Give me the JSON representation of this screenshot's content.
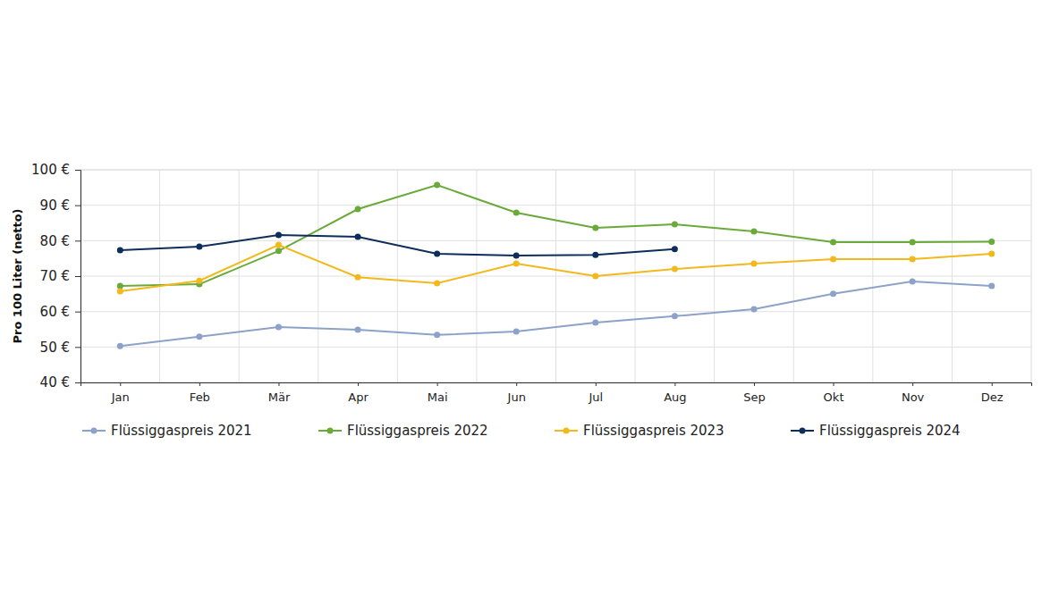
{
  "chart_data": {
    "type": "line",
    "ylabel": "Pro 100 Liter (netto)",
    "categories": [
      "Jan",
      "Feb",
      "Mär",
      "Apr",
      "Mai",
      "Jun",
      "Jul",
      "Aug",
      "Sep",
      "Okt",
      "Nov",
      "Dez"
    ],
    "series": [
      {
        "name": "Flüssiggaspreis 2021",
        "color": "#8da2c9",
        "values": [
          50.3,
          52.9,
          55.6,
          54.9,
          53.4,
          54.4,
          56.9,
          58.7,
          60.7,
          65.0,
          68.5,
          67.2
        ]
      },
      {
        "name": "Flüssiggaspreis 2022",
        "color": "#6aaa3a",
        "values": [
          67.2,
          67.7,
          77.1,
          88.9,
          95.7,
          87.9,
          83.6,
          84.6,
          82.6,
          79.6,
          79.6,
          79.7
        ]
      },
      {
        "name": "Flüssiggaspreis 2023",
        "color": "#f2b81c",
        "values": [
          65.7,
          68.7,
          78.8,
          69.7,
          68.0,
          73.5,
          70.0,
          72.0,
          73.5,
          74.8,
          74.8,
          76.3
        ]
      },
      {
        "name": "Flüssiggaspreis 2024",
        "color": "#0d2d5a",
        "values": [
          77.3,
          78.3,
          81.6,
          81.1,
          76.3,
          75.8,
          76.0,
          77.6,
          null,
          null,
          null,
          null
        ]
      }
    ],
    "ylim": [
      40,
      100
    ],
    "yticks": [
      {
        "value": 40,
        "label": "40 €"
      },
      {
        "value": 50,
        "label": "50 €"
      },
      {
        "value": 60,
        "label": "60 €"
      },
      {
        "value": 70,
        "label": "70 €"
      },
      {
        "value": 80,
        "label": "80 €"
      },
      {
        "value": 90,
        "label": "90 €"
      },
      {
        "value": 100,
        "label": "100 €"
      }
    ],
    "grid": true,
    "legend": "bottom",
    "marker": "circle",
    "line_style": "solid"
  }
}
